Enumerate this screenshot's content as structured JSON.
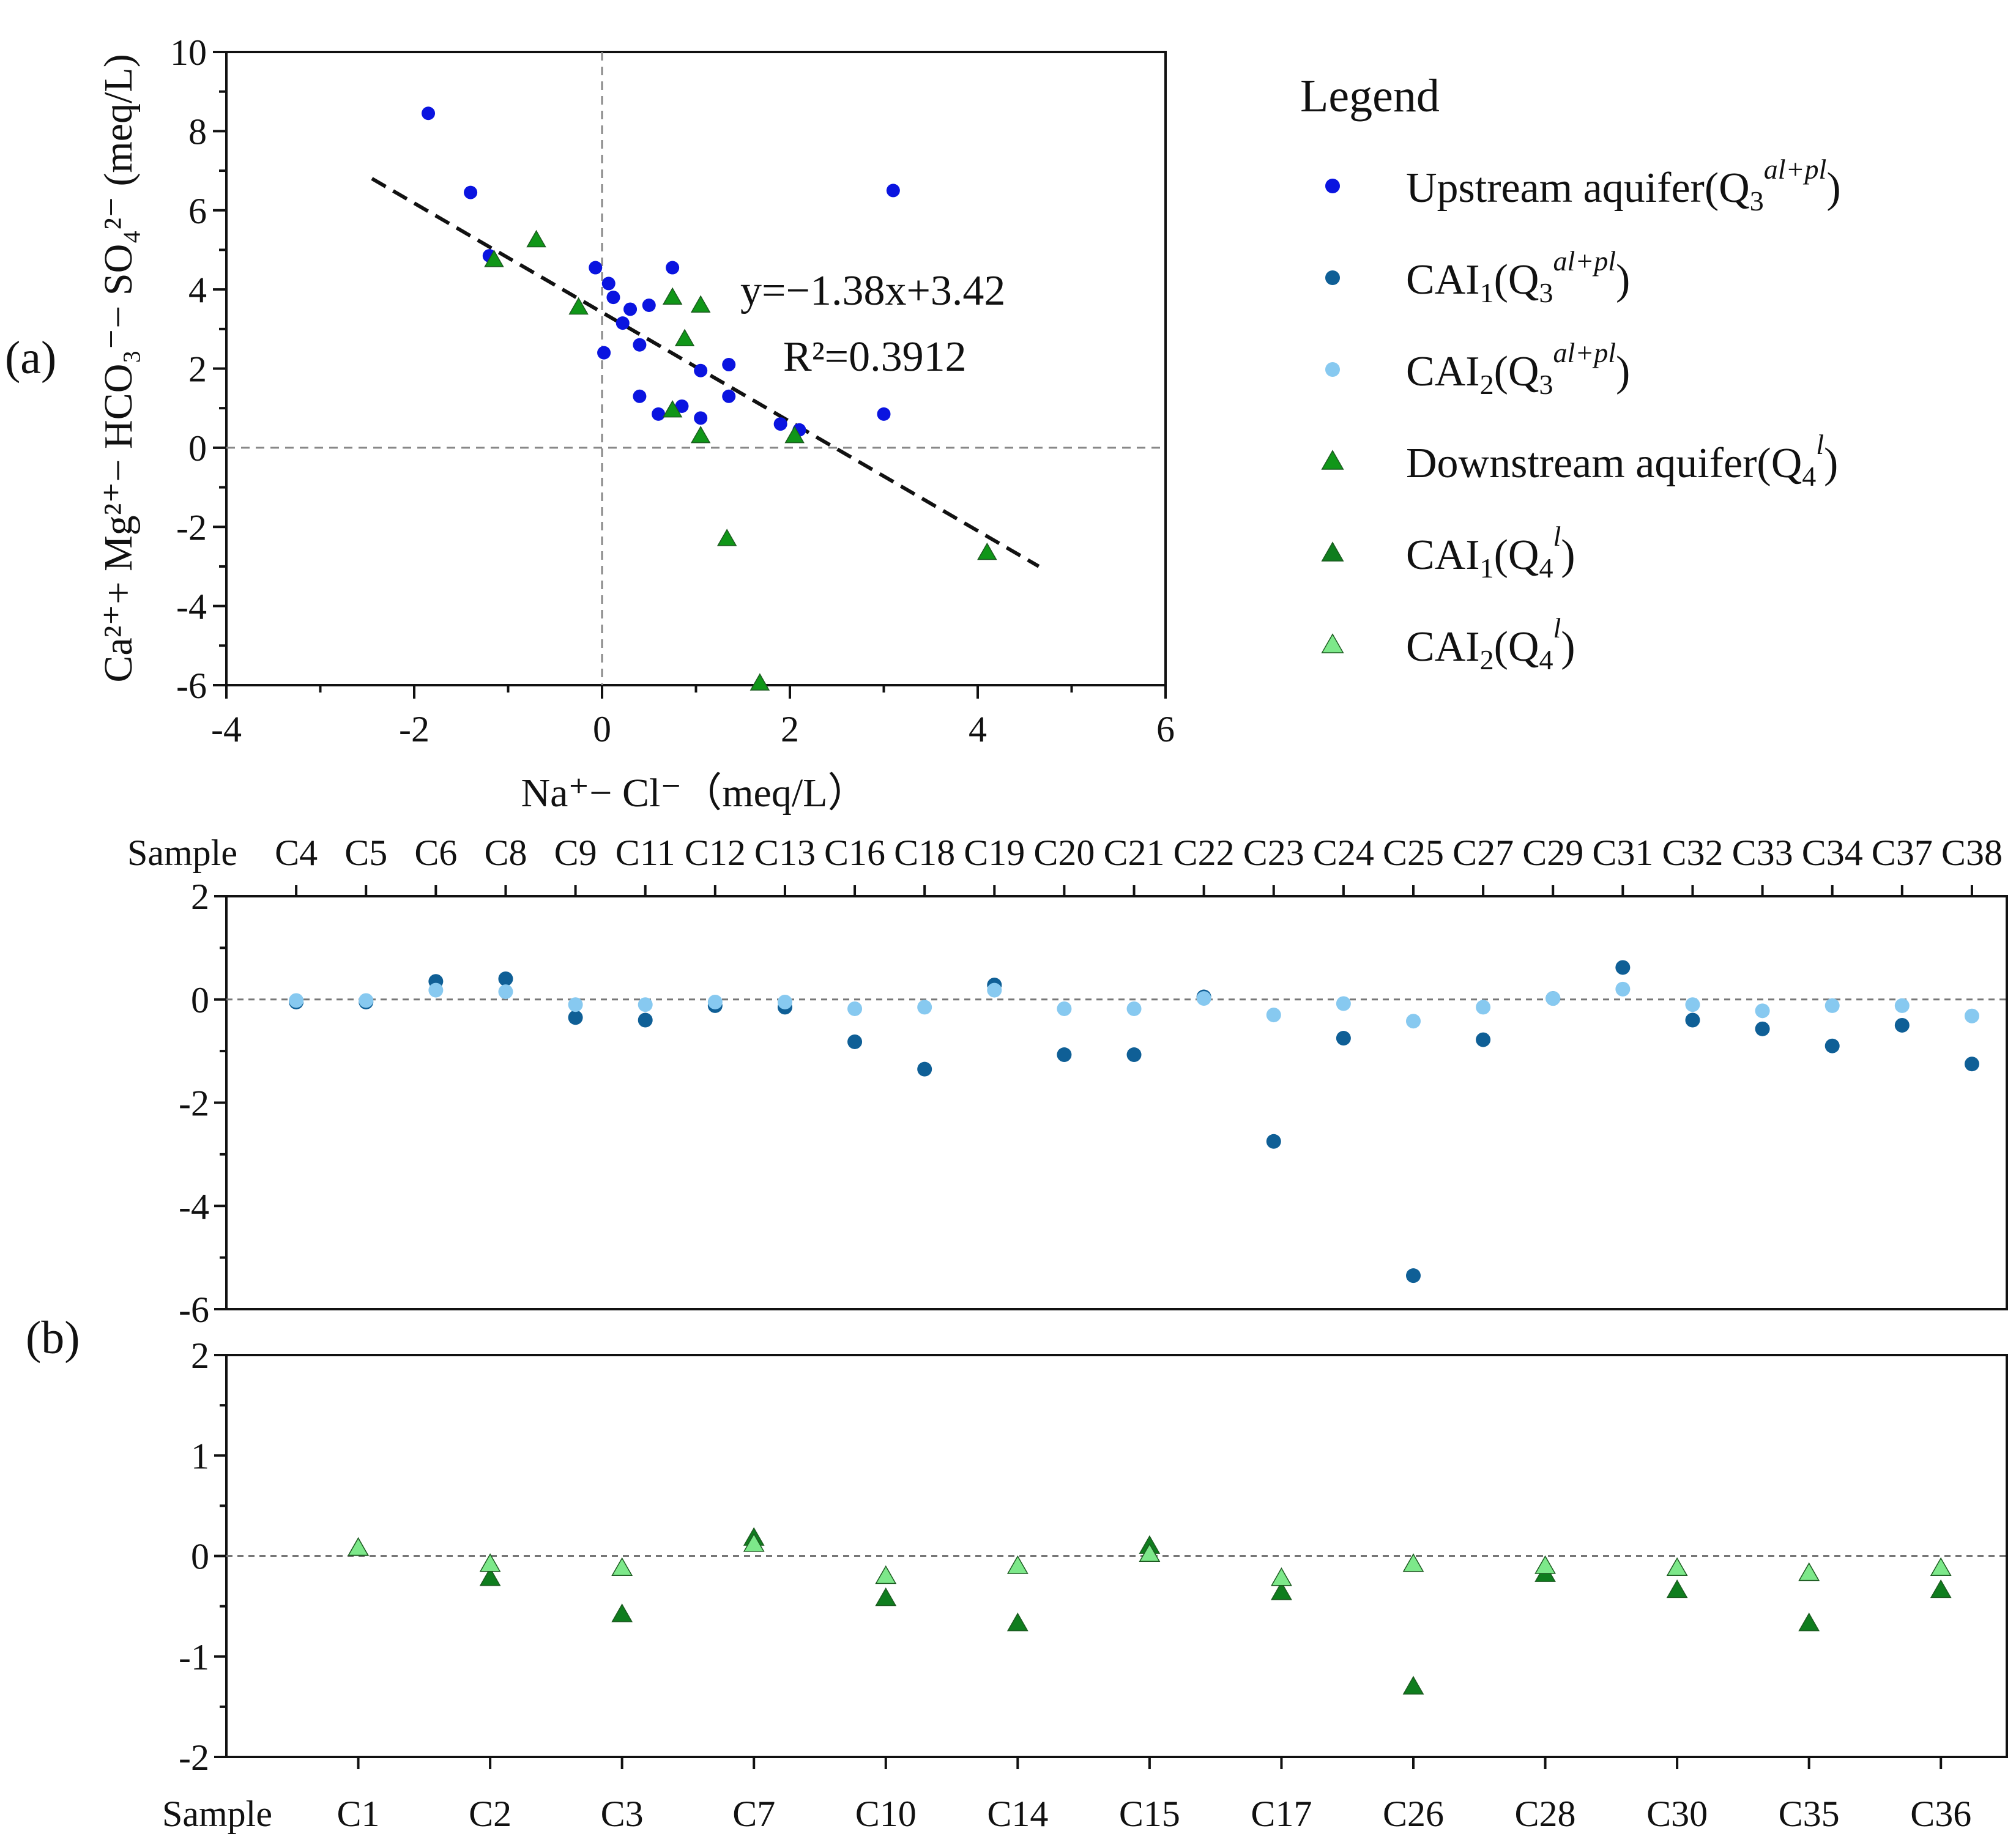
{
  "colors": {
    "upstream": "#0a14e0",
    "cai1_q3": "#0f5f96",
    "cai2_q3": "#87c9f0",
    "downstream": "#109618",
    "cai1_q4": "#0f7d1e",
    "cai2_q4": "#7de88a"
  },
  "chart_data": [
    {
      "type": "scatter",
      "panel_label": "(a)",
      "xlabel": "Na⁺− Cl⁻（meq/L）",
      "ylabel": "Ca²⁺+ Mg²⁺− HCO₃⁻− SO₄²⁻ (meq/L)",
      "xlim": [
        -4,
        6
      ],
      "ylim": [
        -6,
        10
      ],
      "xticks": [
        "-4",
        "-2",
        "0",
        "2",
        "4",
        "6"
      ],
      "yticks": [
        "-6",
        "-4",
        "-2",
        "0",
        "2",
        "4",
        "6",
        "8",
        "10"
      ],
      "fit": {
        "equation": "y=−1.38x+3.42",
        "r2": "R²=0.3912",
        "slope": -1.38,
        "intercept": 3.42,
        "x_range": [
          -2.45,
          4.65
        ]
      },
      "series": [
        {
          "name": "Upstream aquifer(Q3 al+pl)",
          "marker": "circle",
          "color_key": "upstream",
          "points": [
            [
              -1.85,
              8.45
            ],
            [
              -1.4,
              6.45
            ],
            [
              -1.2,
              4.85
            ],
            [
              3.1,
              6.5
            ],
            [
              -0.07,
              4.55
            ],
            [
              0.07,
              4.15
            ],
            [
              0.12,
              3.8
            ],
            [
              0.3,
              3.5
            ],
            [
              0.5,
              3.6
            ],
            [
              0.75,
              4.55
            ],
            [
              0.22,
              3.15
            ],
            [
              0.4,
              2.6
            ],
            [
              0.02,
              2.4
            ],
            [
              1.05,
              1.95
            ],
            [
              1.35,
              2.1
            ],
            [
              0.4,
              1.3
            ],
            [
              0.6,
              0.85
            ],
            [
              0.85,
              1.05
            ],
            [
              1.05,
              0.75
            ],
            [
              1.35,
              1.3
            ],
            [
              1.9,
              0.6
            ],
            [
              2.1,
              0.45
            ],
            [
              3.0,
              0.85
            ]
          ]
        },
        {
          "name": "Downstream aquifer(Q4 l)",
          "marker": "triangle",
          "color_key": "downstream",
          "points": [
            [
              -1.15,
              4.75
            ],
            [
              -0.7,
              5.25
            ],
            [
              -0.25,
              3.55
            ],
            [
              0.75,
              3.8
            ],
            [
              1.05,
              3.6
            ],
            [
              0.88,
              2.75
            ],
            [
              0.75,
              0.95
            ],
            [
              1.05,
              0.3
            ],
            [
              2.05,
              0.3
            ],
            [
              1.33,
              -2.3
            ],
            [
              4.1,
              -2.65
            ],
            [
              1.68,
              -5.95
            ]
          ]
        }
      ],
      "legend": {
        "title": "Legend",
        "entries": [
          {
            "main": "Upstream aquifer(Q",
            "sub": "3",
            "sup": "al+pl",
            "tail": ")",
            "marker": "circle",
            "color_key": "upstream"
          },
          {
            "main": "CAI",
            "sub1": "1",
            "mid": "(Q",
            "sub": "3",
            "sup": "al+pl",
            "tail": ")",
            "marker": "circle",
            "color_key": "cai1_q3"
          },
          {
            "main": "CAI",
            "sub1": "2",
            "mid": "(Q",
            "sub": "3",
            "sup": "al+pl",
            "tail": ")",
            "marker": "circle",
            "color_key": "cai2_q3"
          },
          {
            "main": "Downstream aquifer(Q",
            "sub": "4",
            "sup": "l",
            "tail": ")",
            "marker": "triangle",
            "color_key": "downstream"
          },
          {
            "main": "CAI",
            "sub1": "1",
            "mid": "(Q",
            "sub": "4",
            "sup": "l",
            "tail": ")",
            "marker": "triangle",
            "color_key": "cai1_q4"
          },
          {
            "main": "CAI",
            "sub1": "2",
            "mid": "(Q",
            "sub": "4",
            "sup": "l",
            "tail": ")",
            "marker": "triangle",
            "color_key": "cai2_q4"
          }
        ]
      }
    },
    {
      "type": "scatter",
      "panel_label": "(b)",
      "axis_title": "Sample",
      "ylim": [
        -6,
        2
      ],
      "yticks": [
        "2",
        "0",
        "-2",
        "-4",
        "-6"
      ],
      "categories": [
        "C4",
        "C5",
        "C6",
        "C8",
        "C9",
        "C11",
        "C12",
        "C13",
        "C16",
        "C18",
        "C19",
        "C20",
        "C21",
        "C22",
        "C23",
        "C24",
        "C25",
        "C27",
        "C29",
        "C31",
        "C32",
        "C33",
        "C34",
        "C37",
        "C38"
      ],
      "series": [
        {
          "name": "CAI1(Q3 al+pl)",
          "marker": "circle",
          "color_key": "cai1_q3",
          "values": [
            -0.05,
            -0.05,
            0.35,
            0.4,
            -0.35,
            -0.4,
            -0.12,
            -0.15,
            -0.82,
            -1.35,
            0.28,
            -1.07,
            -1.07,
            0.05,
            -2.75,
            -0.75,
            -5.35,
            -0.78,
            0.02,
            0.62,
            -0.4,
            -0.57,
            -0.9,
            -0.5,
            -1.25
          ]
        },
        {
          "name": "CAI2(Q3 al+pl)",
          "marker": "circle",
          "color_key": "cai2_q3",
          "values": [
            -0.02,
            -0.02,
            0.18,
            0.15,
            -0.1,
            -0.1,
            -0.05,
            -0.05,
            -0.18,
            -0.15,
            0.18,
            -0.18,
            -0.18,
            0.02,
            -0.3,
            -0.08,
            -0.42,
            -0.15,
            0.02,
            0.2,
            -0.1,
            -0.22,
            -0.12,
            -0.12,
            -0.32
          ]
        }
      ]
    },
    {
      "type": "scatter",
      "axis_title": "Sample",
      "ylim": [
        -2,
        2
      ],
      "yticks": [
        "2",
        "1",
        "0",
        "-1",
        "-2"
      ],
      "categories": [
        "C1",
        "C2",
        "C3",
        "C7",
        "C10",
        "C14",
        "C15",
        "C17",
        "C26",
        "C28",
        "C30",
        "C35",
        "C36"
      ],
      "series": [
        {
          "name": "CAI1(Q4 l)",
          "marker": "triangle",
          "color_key": "cai1_q4",
          "values": [
            0.08,
            -0.22,
            -0.58,
            0.18,
            -0.42,
            -0.67,
            0.1,
            -0.36,
            -1.3,
            -0.18,
            -0.34,
            -0.67,
            -0.34
          ]
        },
        {
          "name": "CAI2(Q4 l)",
          "marker": "triangle",
          "color_key": "cai2_q4",
          "values": [
            0.08,
            -0.08,
            -0.12,
            0.12,
            -0.2,
            -0.1,
            0.02,
            -0.22,
            -0.08,
            -0.1,
            -0.12,
            -0.17,
            -0.12
          ]
        }
      ]
    }
  ]
}
